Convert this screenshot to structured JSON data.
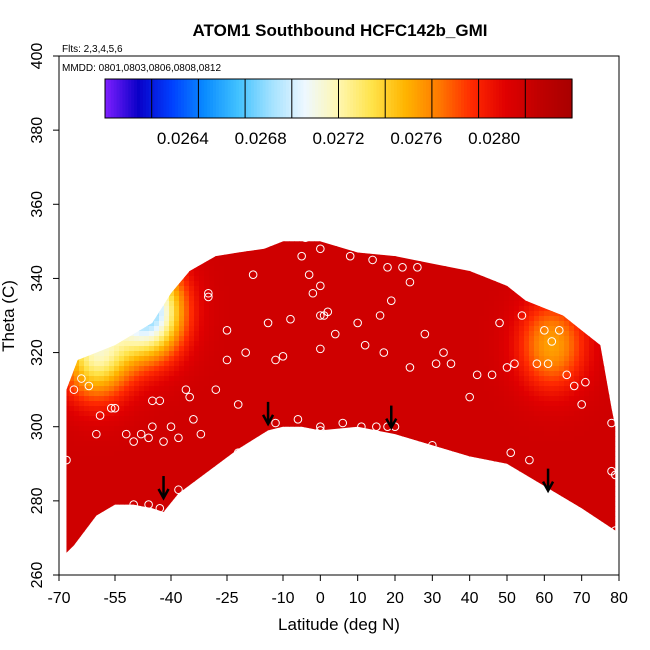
{
  "chart_data": {
    "type": "heatmap",
    "title": "ATOM1 Southbound HCFC142b_GMI",
    "flights_label": "Flts: 2,3,4,5,6",
    "dates_label": "MMDD: 0801,0803,0806,0808,0812",
    "xlabel": "Latitude (deg N)",
    "ylabel": "Theta (C)",
    "xlim": [
      -70,
      80
    ],
    "ylim": [
      260,
      400
    ],
    "x_ticks": [
      "-70",
      "-55",
      "-40",
      "-25",
      "-10",
      "0",
      "10",
      "20",
      "30",
      "40",
      "50",
      "60",
      "70",
      "80"
    ],
    "y_ticks": [
      "260",
      "280",
      "300",
      "320",
      "340",
      "360",
      "380",
      "400"
    ],
    "colorbar": {
      "range": [
        0.026,
        0.0284
      ],
      "tick_labels": [
        "0.0264",
        "0.0268",
        "0.0272",
        "0.0276",
        "0.0280"
      ],
      "tick_values": [
        0.0264,
        0.0268,
        0.0272,
        0.0276,
        0.028
      ],
      "colors": [
        "#7f1fff",
        "#0a00c8",
        "#0040ff",
        "#0a8cff",
        "#42c2ff",
        "#a4e2ff",
        "#eef8ff",
        "#fff7b0",
        "#ffe34a",
        "#ffb400",
        "#ff7a00",
        "#ff2a00",
        "#e00000",
        "#c00000",
        "#a80000"
      ]
    },
    "field": {
      "lower_boundary": [
        [
          -68,
          266
        ],
        [
          -66,
          268
        ],
        [
          -60,
          276
        ],
        [
          -55,
          279
        ],
        [
          -50,
          279
        ],
        [
          -45,
          278
        ],
        [
          -42,
          277
        ],
        [
          -38,
          282
        ],
        [
          -30,
          288
        ],
        [
          -22,
          294
        ],
        [
          -14,
          299
        ],
        [
          -10,
          300
        ],
        [
          -5,
          300
        ],
        [
          0,
          299
        ],
        [
          10,
          300
        ],
        [
          20,
          298
        ],
        [
          30,
          295
        ],
        [
          40,
          292
        ],
        [
          50,
          290
        ],
        [
          60,
          284
        ],
        [
          70,
          278
        ],
        [
          79,
          272
        ]
      ],
      "upper_boundary": [
        [
          -68,
          310
        ],
        [
          -65,
          318
        ],
        [
          -60,
          320
        ],
        [
          -55,
          322
        ],
        [
          -50,
          325
        ],
        [
          -45,
          328
        ],
        [
          -40,
          336
        ],
        [
          -35,
          342
        ],
        [
          -28,
          346
        ],
        [
          -22,
          347
        ],
        [
          -15,
          348
        ],
        [
          -10,
          350
        ],
        [
          0,
          350
        ],
        [
          10,
          347
        ],
        [
          20,
          346
        ],
        [
          30,
          344
        ],
        [
          40,
          342
        ],
        [
          45,
          340
        ],
        [
          50,
          338
        ],
        [
          55,
          334
        ],
        [
          60,
          332
        ],
        [
          65,
          330
        ],
        [
          70,
          326
        ],
        [
          75,
          322
        ],
        [
          78,
          305
        ],
        [
          79,
          300
        ]
      ],
      "high_value_region": "most of the domain 0.0280-0.0282",
      "low_value_patches": [
        {
          "lat": -46,
          "theta": 331,
          "value": 0.0268
        },
        {
          "lat": -60,
          "theta": 320,
          "value": 0.0272
        },
        {
          "lat": 62,
          "theta": 322,
          "value": 0.0276
        }
      ]
    },
    "sample_points": [
      [
        -68,
        291
      ],
      [
        -66,
        310
      ],
      [
        -64,
        313
      ],
      [
        -62,
        311
      ],
      [
        -60,
        298
      ],
      [
        -59,
        303
      ],
      [
        -56,
        305
      ],
      [
        -55,
        305
      ],
      [
        -52,
        298
      ],
      [
        -50,
        296
      ],
      [
        -48,
        298
      ],
      [
        -46,
        297
      ],
      [
        -45,
        300
      ],
      [
        -45,
        307
      ],
      [
        -43,
        307
      ],
      [
        -42,
        296
      ],
      [
        -40,
        300
      ],
      [
        -38,
        297
      ],
      [
        -36,
        310
      ],
      [
        -35,
        308
      ],
      [
        -34,
        302
      ],
      [
        -32,
        298
      ],
      [
        -30,
        335
      ],
      [
        -30,
        336
      ],
      [
        -28,
        310
      ],
      [
        -25,
        318
      ],
      [
        -25,
        326
      ],
      [
        -22,
        306
      ],
      [
        -20,
        320
      ],
      [
        -18,
        341
      ],
      [
        -14,
        328
      ],
      [
        -12,
        301
      ],
      [
        -12,
        318
      ],
      [
        -10,
        319
      ],
      [
        -8,
        329
      ],
      [
        -6,
        302
      ],
      [
        -5,
        346
      ],
      [
        -4,
        351
      ],
      [
        -3,
        341
      ],
      [
        -2,
        336
      ],
      [
        0,
        299
      ],
      [
        0,
        300
      ],
      [
        0,
        321
      ],
      [
        0,
        330
      ],
      [
        0,
        338
      ],
      [
        0,
        348
      ],
      [
        1,
        330
      ],
      [
        2,
        331
      ],
      [
        4,
        325
      ],
      [
        6,
        301
      ],
      [
        8,
        346
      ],
      [
        10,
        328
      ],
      [
        11,
        300
      ],
      [
        12,
        322
      ],
      [
        14,
        345
      ],
      [
        15,
        300
      ],
      [
        16,
        330
      ],
      [
        17,
        320
      ],
      [
        18,
        300
      ],
      [
        18,
        343
      ],
      [
        19,
        334
      ],
      [
        20,
        300
      ],
      [
        22,
        343
      ],
      [
        24,
        339
      ],
      [
        24,
        316
      ],
      [
        26,
        343
      ],
      [
        28,
        325
      ],
      [
        30,
        295
      ],
      [
        31,
        317
      ],
      [
        33,
        320
      ],
      [
        35,
        317
      ],
      [
        36,
        291
      ],
      [
        40,
        308
      ],
      [
        42,
        314
      ],
      [
        44,
        290
      ],
      [
        46,
        314
      ],
      [
        48,
        328
      ],
      [
        50,
        316
      ],
      [
        51,
        293
      ],
      [
        52,
        317
      ],
      [
        54,
        330
      ],
      [
        56,
        291
      ],
      [
        58,
        317
      ],
      [
        60,
        326
      ],
      [
        61,
        317
      ],
      [
        62,
        323
      ],
      [
        64,
        326
      ],
      [
        66,
        314
      ],
      [
        68,
        311
      ],
      [
        70,
        306
      ],
      [
        71,
        312
      ],
      [
        78,
        301
      ],
      [
        78,
        288
      ],
      [
        79,
        287
      ],
      [
        79,
        272
      ],
      [
        -50,
        279
      ],
      [
        -46,
        279
      ],
      [
        -43,
        278
      ],
      [
        -38,
        283
      ],
      [
        -30,
        286
      ],
      [
        -22,
        293
      ],
      [
        -48,
        276
      ],
      [
        -55,
        277
      ]
    ],
    "arrows": [
      {
        "lat": -42,
        "theta": 284
      },
      {
        "lat": -14,
        "theta": 304
      },
      {
        "lat": 19,
        "theta": 303
      },
      {
        "lat": 61,
        "theta": 286
      }
    ]
  }
}
